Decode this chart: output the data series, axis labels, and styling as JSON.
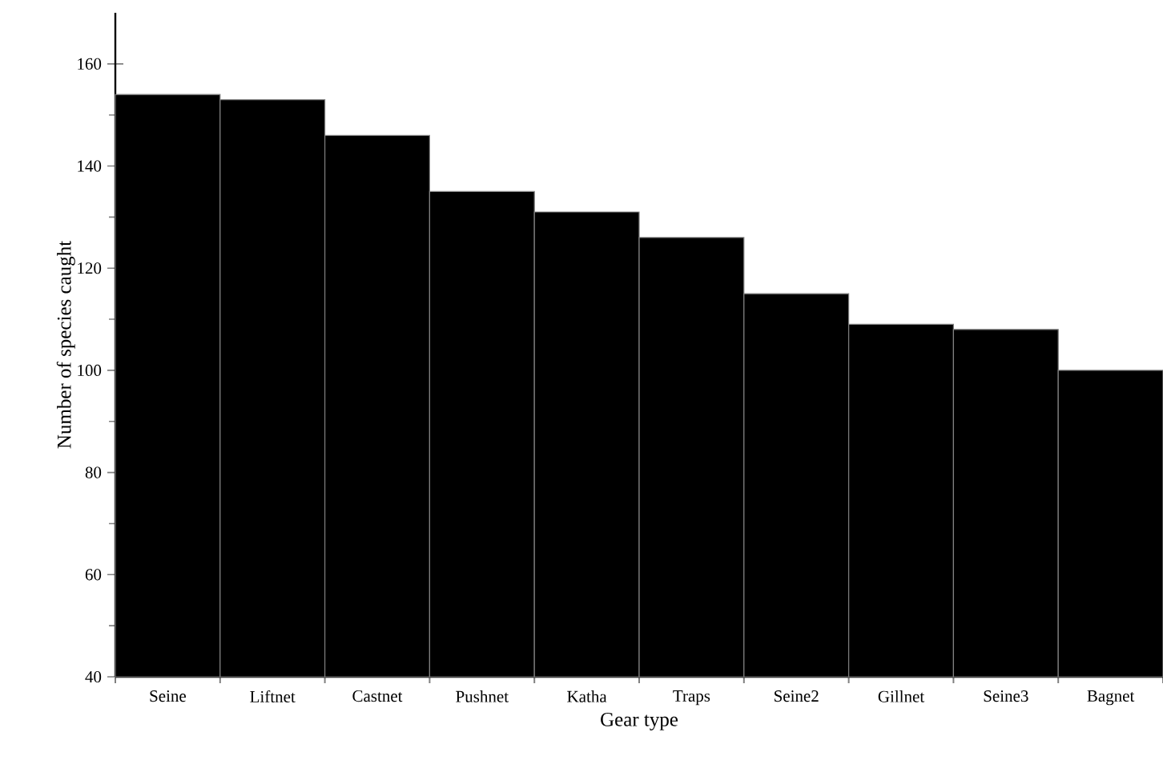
{
  "chart_data": {
    "type": "bar",
    "xlabel": "Gear type",
    "ylabel": "Number of species caught",
    "categories": [
      "Seine",
      "Liftnet",
      "Castnet",
      "Pushnet",
      "Katha",
      "Traps",
      "Seine2",
      "Gillnet",
      "Seine3",
      "Bagnet"
    ],
    "values": [
      154,
      153,
      146,
      135,
      131,
      126,
      115,
      109,
      108,
      100
    ],
    "color": "#000000",
    "ylim": [
      40,
      170
    ],
    "yticks": [
      40,
      60,
      80,
      100,
      120,
      140,
      160
    ],
    "grid": false
  }
}
